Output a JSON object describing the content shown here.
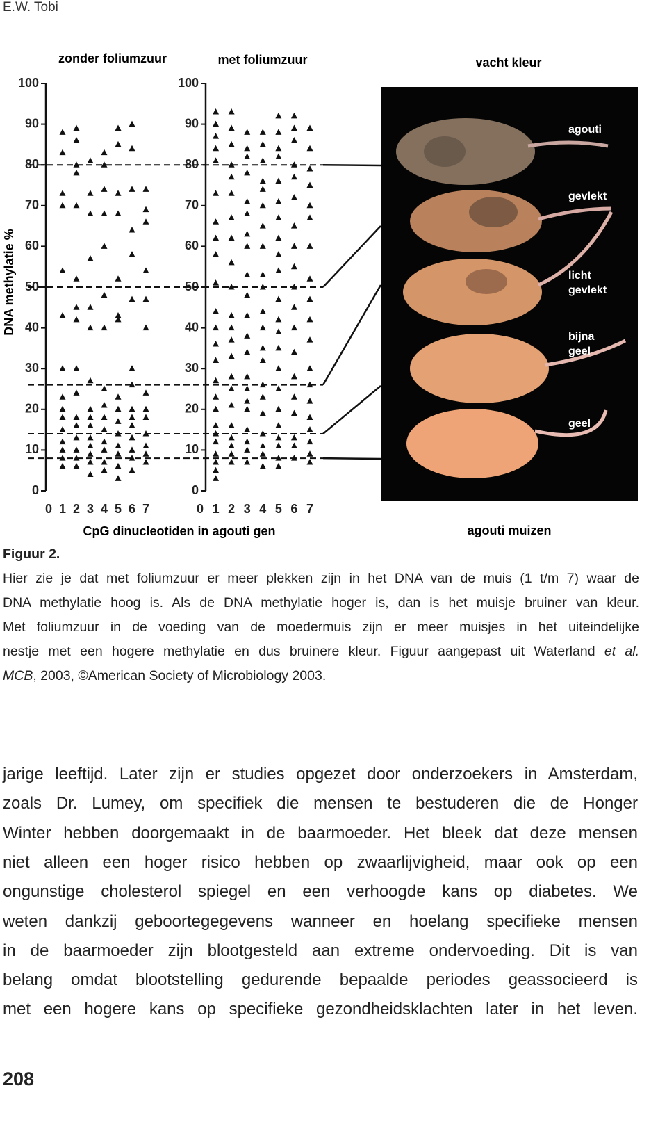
{
  "header": {
    "author": "E.W. Tobi"
  },
  "chart_data": [
    {
      "type": "scatter",
      "title": "zonder foliumzuur",
      "color": "#111111",
      "xlim": [
        0,
        7
      ],
      "xticks": [
        0,
        1,
        2,
        3,
        4,
        5,
        6,
        7
      ],
      "ylim": [
        0,
        100
      ],
      "yticks": [
        0,
        10,
        20,
        30,
        40,
        50,
        60,
        70,
        80,
        90,
        100
      ],
      "x": [
        1,
        1,
        1,
        1,
        1,
        1,
        1,
        1,
        1,
        1,
        1,
        1,
        1,
        1,
        1,
        2,
        2,
        2,
        2,
        2,
        2,
        2,
        2,
        2,
        2,
        2,
        2,
        2,
        2,
        2,
        2,
        3,
        3,
        3,
        3,
        3,
        3,
        3,
        3,
        3,
        3,
        3,
        3,
        3,
        3,
        3,
        4,
        4,
        4,
        4,
        4,
        4,
        4,
        4,
        4,
        4,
        4,
        4,
        4,
        4,
        4,
        5,
        5,
        5,
        5,
        5,
        5,
        5,
        5,
        5,
        5,
        5,
        5,
        5,
        5,
        5,
        6,
        6,
        6,
        6,
        6,
        6,
        6,
        6,
        6,
        6,
        6,
        6,
        6,
        6,
        6,
        7,
        7,
        7,
        7,
        7,
        7,
        7,
        7,
        7,
        7,
        7,
        7,
        7
      ],
      "values": [
        88,
        83,
        73,
        70,
        54,
        43,
        30,
        23,
        20,
        18,
        15,
        12,
        10,
        8,
        6,
        89,
        86,
        80,
        78,
        70,
        52,
        45,
        42,
        30,
        24,
        18,
        16,
        13,
        10,
        8,
        6,
        81,
        73,
        68,
        57,
        45,
        40,
        27,
        20,
        18,
        16,
        13,
        11,
        9,
        7,
        4,
        83,
        80,
        74,
        68,
        60,
        48,
        40,
        25,
        21,
        18,
        15,
        12,
        10,
        7,
        5,
        89,
        85,
        73,
        68,
        52,
        43,
        42,
        23,
        20,
        17,
        14,
        11,
        9,
        6,
        3,
        90,
        84,
        74,
        64,
        58,
        47,
        30,
        26,
        20,
        18,
        16,
        13,
        10,
        8,
        5,
        74,
        69,
        66,
        54,
        47,
        40,
        24,
        20,
        18,
        14,
        11,
        9,
        7
      ]
    },
    {
      "type": "scatter",
      "title": "met foliumzuur",
      "color": "#111111",
      "xlim": [
        0,
        7
      ],
      "xticks": [
        0,
        1,
        2,
        3,
        4,
        5,
        6,
        7
      ],
      "ylim": [
        0,
        100
      ],
      "yticks": [
        0,
        10,
        20,
        30,
        40,
        50,
        60,
        70,
        80,
        90,
        100
      ],
      "x": [
        1,
        1,
        1,
        1,
        1,
        1,
        1,
        1,
        1,
        1,
        1,
        1,
        1,
        1,
        1,
        1,
        1,
        1,
        1,
        1,
        1,
        1,
        1,
        1,
        2,
        2,
        2,
        2,
        2,
        2,
        2,
        2,
        2,
        2,
        2,
        2,
        2,
        2,
        2,
        2,
        2,
        2,
        2,
        2,
        2,
        2,
        3,
        3,
        3,
        3,
        3,
        3,
        3,
        3,
        3,
        3,
        3,
        3,
        3,
        3,
        3,
        3,
        3,
        3,
        3,
        3,
        3,
        4,
        4,
        4,
        4,
        4,
        4,
        4,
        4,
        4,
        4,
        4,
        4,
        4,
        4,
        4,
        4,
        4,
        4,
        4,
        4,
        4,
        5,
        5,
        5,
        5,
        5,
        5,
        5,
        5,
        5,
        5,
        5,
        5,
        5,
        5,
        5,
        5,
        5,
        5,
        5,
        5,
        5,
        5,
        6,
        6,
        6,
        6,
        6,
        6,
        6,
        6,
        6,
        6,
        6,
        6,
        6,
        6,
        6,
        6,
        6,
        6,
        6,
        7,
        7,
        7,
        7,
        7,
        7,
        7,
        7,
        7,
        7,
        7,
        7,
        7,
        7,
        7,
        7,
        7,
        7,
        7
      ],
      "values": [
        93,
        90,
        87,
        84,
        81,
        73,
        66,
        62,
        58,
        51,
        44,
        40,
        36,
        32,
        27,
        23,
        20,
        16,
        14,
        12,
        9,
        7,
        5,
        3,
        93,
        89,
        85,
        80,
        77,
        73,
        67,
        62,
        56,
        50,
        43,
        40,
        37,
        33,
        28,
        25,
        21,
        16,
        13,
        11,
        9,
        7,
        88,
        84,
        82,
        78,
        71,
        68,
        63,
        60,
        53,
        48,
        43,
        38,
        34,
        28,
        25,
        22,
        20,
        15,
        12,
        10,
        7,
        88,
        85,
        81,
        76,
        74,
        70,
        65,
        60,
        53,
        50,
        44,
        40,
        35,
        32,
        26,
        23,
        19,
        14,
        11,
        9,
        6,
        92,
        88,
        84,
        82,
        76,
        71,
        67,
        62,
        58,
        54,
        47,
        42,
        39,
        35,
        30,
        25,
        20,
        16,
        13,
        11,
        8,
        6,
        92,
        89,
        86,
        80,
        77,
        72,
        65,
        60,
        55,
        50,
        45,
        40,
        34,
        28,
        23,
        19,
        13,
        11,
        8,
        89,
        84,
        79,
        75,
        70,
        67,
        60,
        52,
        47,
        42,
        37,
        30,
        26,
        22,
        18,
        15,
        12,
        9,
        7
      ]
    }
  ],
  "figure": {
    "x_label": "CpG dinucleotiden in agouti gen",
    "y_label": "DNA methylatie %",
    "reference_lines": [
      80,
      50,
      26,
      14,
      8
    ],
    "photo_title": "vacht kleur",
    "photo_caption": "agouti muizen",
    "photo_labels": [
      [
        "agouti"
      ],
      [
        "gevlekt"
      ],
      [
        "licht",
        "gevlekt"
      ],
      [
        "bijna",
        "geel"
      ],
      [
        "geel"
      ]
    ]
  },
  "caption": {
    "label": "Figuur 2.",
    "lines": [
      [
        "Hier zie je dat met foliumzuur er meer plekken zijn in het DNA van de muis (1 t/m 7) waar de"
      ],
      [
        "DNA methylatie hoog is. Als de DNA methylatie hoger is, dan is het muisje bruiner van kleur."
      ],
      [
        "Met foliumzuur in de voeding van de moedermuis zijn er meer muisjes in het uiteindelijke"
      ],
      [
        "nestje met een hogere methylatie en dus bruinere kleur. Figuur aangepast uit Waterland",
        "et al."
      ],
      [
        "MCB",
        ", 2003, ©American Society of Microbiology 2003."
      ]
    ]
  },
  "body": {
    "lines": [
      "jarige leeftijd. Later zijn er studies opgezet door onderzoekers in Amsterdam,",
      "zoals Dr. Lumey, om specifiek die mensen te bestuderen die de Honger",
      "Winter hebben doorgemaakt in de baarmoeder. Het bleek dat deze mensen",
      "niet alleen een hoger risico hebben op zwaarlijvigheid, maar ook op een",
      "ongunstige cholesterol spiegel en een verhoogde kans op diabetes. We",
      "weten dankzij geboortegegevens wanneer en hoelang specifieke mensen",
      "in de baarmoeder zijn blootgesteld aan extreme ondervoeding. Dit is van",
      "belang omdat blootstelling gedurende bepaalde periodes geassocieerd is",
      "met een hogere kans op specifieke gezondheidsklachten later in het leven."
    ]
  },
  "footer": {
    "page_number": "208"
  }
}
